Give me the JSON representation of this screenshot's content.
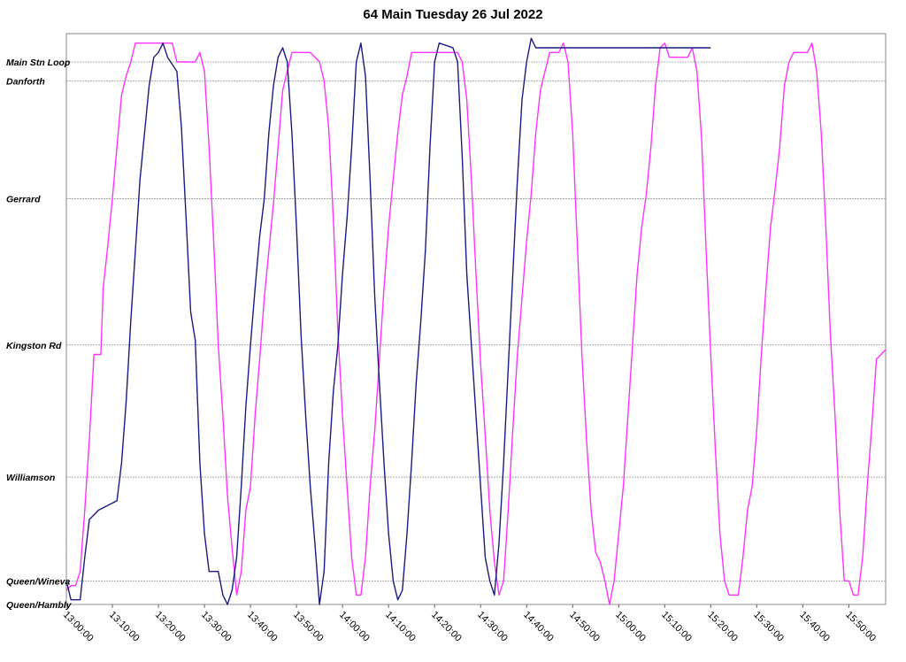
{
  "chart_data": {
    "type": "line",
    "title": "64 Main Tuesday 26 Jul 2022",
    "xlabel": "",
    "ylabel": "",
    "x_ticks": [
      "13:00:00",
      "13:10:00",
      "13:20:00",
      "13:30:00",
      "13:40:00",
      "13:50:00",
      "14:00:00",
      "14:10:00",
      "14:20:00",
      "14:30:00",
      "14:40:00",
      "14:50:00",
      "15:00:00",
      "15:10:00",
      "15:20:00",
      "15:30:00",
      "15:40:00",
      "15:50:00"
    ],
    "xlim": [
      "13:00:00",
      "15:58:00"
    ],
    "y_stops": [
      {
        "name": "Main Stn Loop",
        "value": 100
      },
      {
        "name": "Danforth",
        "value": 96
      },
      {
        "name": "Gerrard",
        "value": 71
      },
      {
        "name": "Kingston Rd",
        "value": 40
      },
      {
        "name": "Williamson",
        "value": 12
      },
      {
        "name": "Queen/Wineva",
        "value": -10
      },
      {
        "name": "Queen/Hambly",
        "value": -15
      }
    ],
    "ylim": [
      -15,
      106
    ],
    "grid": true,
    "series": [
      {
        "color": "#ff33ff",
        "points": [
          [
            "13:00:00",
            -12
          ],
          [
            "13:01:00",
            -11
          ],
          [
            "13:02:00",
            -11
          ],
          [
            "13:03:00",
            -8
          ],
          [
            "13:04:00",
            5
          ],
          [
            "13:05:00",
            20
          ],
          [
            "13:06:00",
            38
          ],
          [
            "13:07:30",
            38
          ],
          [
            "13:08:00",
            52
          ],
          [
            "13:09:00",
            61
          ],
          [
            "13:10:00",
            71
          ],
          [
            "13:11:00",
            82
          ],
          [
            "13:12:00",
            93
          ],
          [
            "13:13:00",
            97
          ],
          [
            "13:14:00",
            100
          ],
          [
            "13:15:00",
            104
          ],
          [
            "13:23:00",
            104
          ],
          [
            "13:24:00",
            100
          ],
          [
            "13:28:00",
            100
          ],
          [
            "13:29:00",
            102
          ],
          [
            "13:30:00",
            98
          ],
          [
            "13:31:00",
            82
          ],
          [
            "13:32:00",
            62
          ],
          [
            "13:33:00",
            40
          ],
          [
            "13:34:00",
            25
          ],
          [
            "13:35:00",
            8
          ],
          [
            "13:36:00",
            -3
          ],
          [
            "13:37:00",
            -13
          ],
          [
            "13:38:00",
            -8
          ],
          [
            "13:39:00",
            5
          ],
          [
            "13:40:00",
            10
          ],
          [
            "13:41:00",
            25
          ],
          [
            "13:42:00",
            37
          ],
          [
            "13:43:00",
            50
          ],
          [
            "13:44:00",
            60
          ],
          [
            "13:45:00",
            70
          ],
          [
            "13:46:00",
            82
          ],
          [
            "13:47:00",
            94
          ],
          [
            "13:48:00",
            98
          ],
          [
            "13:49:00",
            102
          ],
          [
            "13:53:00",
            102
          ],
          [
            "13:55:00",
            100
          ],
          [
            "13:56:00",
            96
          ],
          [
            "13:57:00",
            86
          ],
          [
            "13:58:00",
            67
          ],
          [
            "13:59:00",
            43
          ],
          [
            "14:00:00",
            25
          ],
          [
            "14:01:00",
            10
          ],
          [
            "14:02:00",
            -5
          ],
          [
            "14:03:00",
            -13
          ],
          [
            "14:04:00",
            -13
          ],
          [
            "14:05:00",
            -5
          ],
          [
            "14:06:00",
            10
          ],
          [
            "14:07:00",
            22
          ],
          [
            "14:08:00",
            37
          ],
          [
            "14:09:00",
            52
          ],
          [
            "14:10:00",
            65
          ],
          [
            "14:11:00",
            75
          ],
          [
            "14:12:00",
            85
          ],
          [
            "14:13:00",
            93
          ],
          [
            "14:14:00",
            97
          ],
          [
            "14:15:00",
            102
          ],
          [
            "14:25:00",
            102
          ],
          [
            "14:26:00",
            100
          ],
          [
            "14:27:00",
            92
          ],
          [
            "14:28:00",
            75
          ],
          [
            "14:29:00",
            55
          ],
          [
            "14:30:00",
            36
          ],
          [
            "14:31:00",
            21
          ],
          [
            "14:32:00",
            5
          ],
          [
            "14:33:00",
            -6
          ],
          [
            "14:34:00",
            -13
          ],
          [
            "14:35:00",
            -10
          ],
          [
            "14:36:00",
            5
          ],
          [
            "14:37:00",
            22
          ],
          [
            "14:38:00",
            38
          ],
          [
            "14:39:00",
            50
          ],
          [
            "14:40:00",
            62
          ],
          [
            "14:41:00",
            72
          ],
          [
            "14:42:00",
            85
          ],
          [
            "14:43:00",
            94
          ],
          [
            "14:44:00",
            98
          ],
          [
            "14:45:00",
            102
          ],
          [
            "14:47:00",
            102
          ],
          [
            "14:48:00",
            104
          ],
          [
            "14:49:00",
            100
          ],
          [
            "14:50:00",
            85
          ],
          [
            "14:51:00",
            62
          ],
          [
            "14:52:00",
            38
          ],
          [
            "14:53:00",
            20
          ],
          [
            "14:54:00",
            5
          ],
          [
            "14:55:00",
            -4
          ],
          [
            "14:56:00",
            -6
          ],
          [
            "14:57:00",
            -10
          ],
          [
            "14:58:00",
            -15
          ],
          [
            "14:59:00",
            -10
          ],
          [
            "15:00:00",
            0
          ],
          [
            "15:01:00",
            10
          ],
          [
            "15:02:00",
            25
          ],
          [
            "15:03:00",
            40
          ],
          [
            "15:04:00",
            55
          ],
          [
            "15:05:00",
            65
          ],
          [
            "15:06:00",
            72
          ],
          [
            "15:07:00",
            82
          ],
          [
            "15:08:00",
            95
          ],
          [
            "15:09:00",
            103
          ],
          [
            "15:10:00",
            104
          ],
          [
            "15:11:00",
            101
          ],
          [
            "15:15:00",
            101
          ],
          [
            "15:16:00",
            103
          ],
          [
            "15:17:00",
            98
          ],
          [
            "15:18:00",
            84
          ],
          [
            "15:19:00",
            60
          ],
          [
            "15:20:00",
            38
          ],
          [
            "15:21:00",
            18
          ],
          [
            "15:22:00",
            0
          ],
          [
            "15:23:00",
            -10
          ],
          [
            "15:24:00",
            -13
          ],
          [
            "15:26:00",
            -13
          ],
          [
            "15:27:00",
            -5
          ],
          [
            "15:28:00",
            5
          ],
          [
            "15:29:00",
            10
          ],
          [
            "15:30:00",
            22
          ],
          [
            "15:31:00",
            38
          ],
          [
            "15:32:00",
            52
          ],
          [
            "15:33:00",
            65
          ],
          [
            "15:34:00",
            73
          ],
          [
            "15:35:00",
            82
          ],
          [
            "15:36:00",
            95
          ],
          [
            "15:37:00",
            100
          ],
          [
            "15:38:00",
            102
          ],
          [
            "15:41:00",
            102
          ],
          [
            "15:42:00",
            104
          ],
          [
            "15:43:00",
            98
          ],
          [
            "15:44:00",
            85
          ],
          [
            "15:45:00",
            65
          ],
          [
            "15:46:00",
            42
          ],
          [
            "15:47:00",
            25
          ],
          [
            "15:48:00",
            5
          ],
          [
            "15:49:00",
            -10
          ],
          [
            "15:50:00",
            -10
          ],
          [
            "15:51:00",
            -13
          ],
          [
            "15:52:00",
            -13
          ],
          [
            "15:53:00",
            -5
          ],
          [
            "15:54:00",
            10
          ],
          [
            "15:55:00",
            23
          ],
          [
            "15:56:00",
            37
          ],
          [
            "15:57:00",
            38
          ],
          [
            "15:58:00",
            39
          ]
        ]
      },
      {
        "color": "#1a1a80",
        "points": [
          [
            "13:00:00",
            -10
          ],
          [
            "13:01:00",
            -14
          ],
          [
            "13:03:00",
            -14
          ],
          [
            "13:04:00",
            -5
          ],
          [
            "13:05:00",
            3
          ],
          [
            "13:06:00",
            4
          ],
          [
            "13:07:00",
            5
          ],
          [
            "13:09:00",
            6
          ],
          [
            "13:11:00",
            7
          ],
          [
            "13:12:00",
            15
          ],
          [
            "13:13:00",
            28
          ],
          [
            "13:14:00",
            45
          ],
          [
            "13:15:00",
            60
          ],
          [
            "13:16:00",
            75
          ],
          [
            "13:17:00",
            85
          ],
          [
            "13:18:00",
            95
          ],
          [
            "13:19:00",
            101
          ],
          [
            "13:20:00",
            102
          ],
          [
            "13:21:00",
            104
          ],
          [
            "13:22:00",
            101
          ],
          [
            "13:24:00",
            98
          ],
          [
            "13:25:00",
            86
          ],
          [
            "13:26:00",
            67
          ],
          [
            "13:27:00",
            47
          ],
          [
            "13:28:00",
            41
          ],
          [
            "13:29:00",
            15
          ],
          [
            "13:30:00",
            0
          ],
          [
            "13:31:00",
            -8
          ],
          [
            "13:33:00",
            -8
          ],
          [
            "13:34:00",
            -13
          ],
          [
            "13:35:00",
            -15
          ],
          [
            "13:36:00",
            -12
          ],
          [
            "13:37:00",
            -5
          ],
          [
            "13:38:00",
            10
          ],
          [
            "13:39:00",
            27
          ],
          [
            "13:40:00",
            40
          ],
          [
            "13:41:00",
            52
          ],
          [
            "13:42:00",
            63
          ],
          [
            "13:43:00",
            71
          ],
          [
            "13:44:00",
            85
          ],
          [
            "13:45:00",
            95
          ],
          [
            "13:46:00",
            101
          ],
          [
            "13:47:00",
            103
          ],
          [
            "13:48:00",
            100
          ],
          [
            "13:49:00",
            85
          ],
          [
            "13:50:00",
            65
          ],
          [
            "13:51:00",
            42
          ],
          [
            "13:52:00",
            25
          ],
          [
            "13:53:00",
            10
          ],
          [
            "13:54:00",
            -2
          ],
          [
            "13:55:00",
            -15
          ],
          [
            "13:56:00",
            -8
          ],
          [
            "13:57:00",
            15
          ],
          [
            "13:58:00",
            30
          ],
          [
            "13:59:00",
            40
          ],
          [
            "14:00:00",
            55
          ],
          [
            "14:01:00",
            67
          ],
          [
            "14:02:00",
            82
          ],
          [
            "14:03:00",
            100
          ],
          [
            "14:04:00",
            104
          ],
          [
            "14:05:00",
            97
          ],
          [
            "14:06:00",
            75
          ],
          [
            "14:07:00",
            50
          ],
          [
            "14:08:00",
            32
          ],
          [
            "14:09:00",
            15
          ],
          [
            "14:10:00",
            0
          ],
          [
            "14:11:00",
            -10
          ],
          [
            "14:12:00",
            -14
          ],
          [
            "14:13:00",
            -12
          ],
          [
            "14:14:00",
            0
          ],
          [
            "14:15:00",
            15
          ],
          [
            "14:16:00",
            32
          ],
          [
            "14:17:00",
            45
          ],
          [
            "14:18:00",
            60
          ],
          [
            "14:19:00",
            82
          ],
          [
            "14:20:00",
            100
          ],
          [
            "14:21:00",
            104
          ],
          [
            "14:24:00",
            103
          ],
          [
            "14:25:00",
            100
          ],
          [
            "14:26:00",
            80
          ],
          [
            "14:27:00",
            55
          ],
          [
            "14:28:00",
            40
          ],
          [
            "14:29:00",
            25
          ],
          [
            "14:30:00",
            10
          ],
          [
            "14:31:00",
            -5
          ],
          [
            "14:32:00",
            -10
          ],
          [
            "14:33:00",
            -13
          ],
          [
            "14:34:00",
            -2
          ],
          [
            "14:35:00",
            15
          ],
          [
            "14:36:00",
            35
          ],
          [
            "14:37:00",
            55
          ],
          [
            "14:38:00",
            75
          ],
          [
            "14:39:00",
            92
          ],
          [
            "14:40:00",
            100
          ],
          [
            "14:41:00",
            105
          ],
          [
            "14:42:00",
            103
          ],
          [
            "15:20:00",
            103
          ]
        ]
      }
    ]
  }
}
